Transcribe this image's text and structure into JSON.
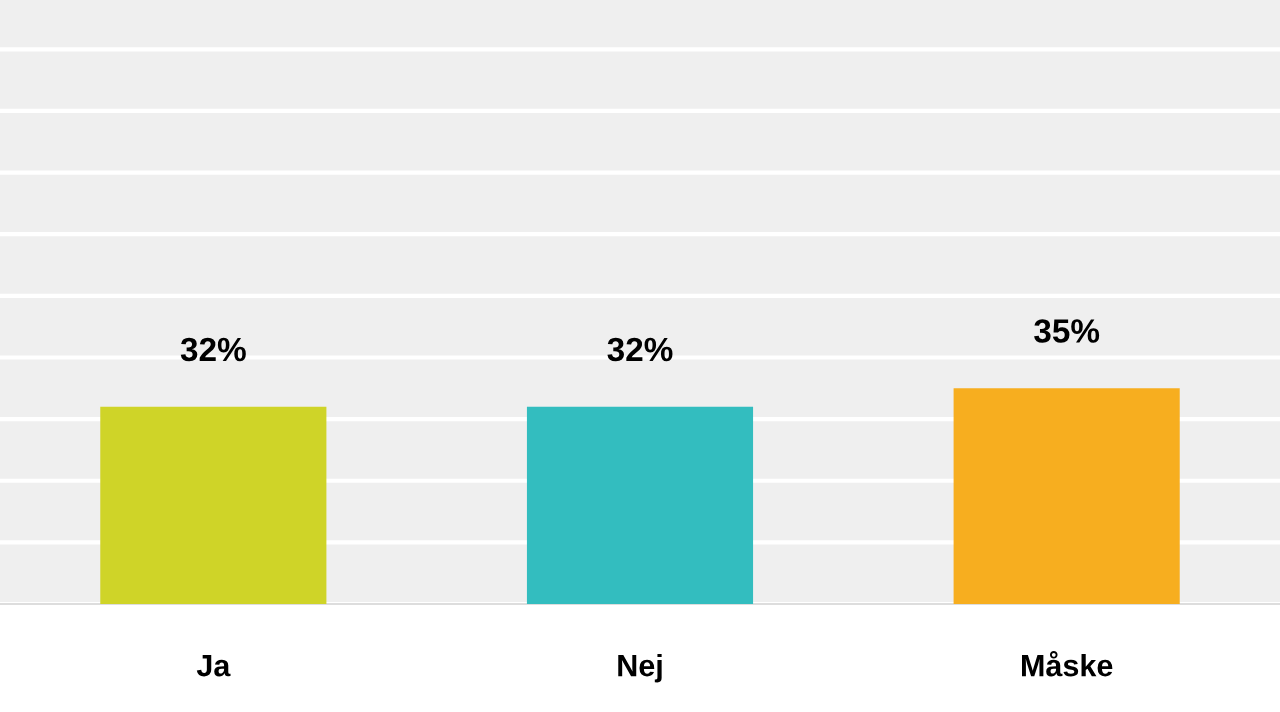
{
  "chart_data": {
    "type": "bar",
    "categories": [
      "Ja",
      "Nej",
      "Måske"
    ],
    "values": [
      32,
      32,
      35
    ],
    "colors": [
      "#cfd428",
      "#33bdbf",
      "#f7ae1f"
    ],
    "value_labels": [
      "32%",
      "32%",
      "35%"
    ],
    "grid": "y",
    "tick_labels": "x"
  }
}
